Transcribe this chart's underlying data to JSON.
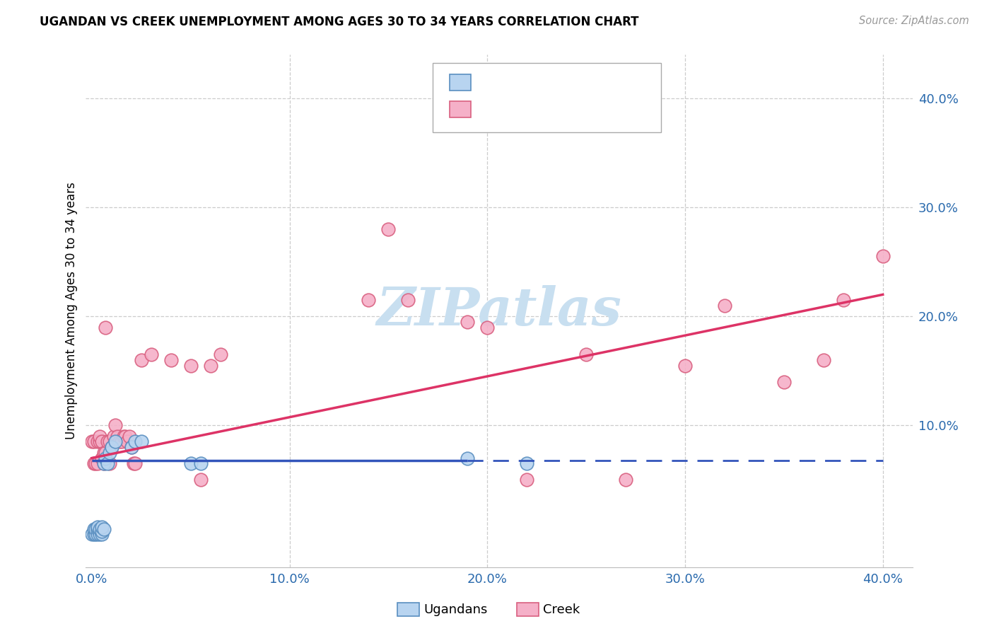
{
  "title": "UGANDAN VS CREEK UNEMPLOYMENT AMONG AGES 30 TO 34 YEARS CORRELATION CHART",
  "source": "Source: ZipAtlas.com",
  "ylabel": "Unemployment Among Ages 30 to 34 years",
  "xlim": [
    -0.003,
    0.415
  ],
  "ylim": [
    -0.03,
    0.44
  ],
  "xticks": [
    0.0,
    0.1,
    0.2,
    0.3,
    0.4
  ],
  "xtick_labels": [
    "0.0%",
    "10.0%",
    "20.0%",
    "30.0%",
    "40.0%"
  ],
  "yticks": [
    0.0,
    0.1,
    0.2,
    0.3,
    0.4
  ],
  "ytick_labels": [
    "",
    "10.0%",
    "20.0%",
    "30.0%",
    "40.0%"
  ],
  "ugandan_color": "#b8d4f0",
  "creek_color": "#f5b0c8",
  "ugandan_edge": "#5a8fc0",
  "creek_edge": "#d96080",
  "trend_ugandan_color": "#3355bb",
  "trend_creek_color": "#dd3366",
  "ugandan_x": [
    0.0,
    0.001,
    0.001,
    0.002,
    0.002,
    0.003,
    0.003,
    0.003,
    0.004,
    0.004,
    0.005,
    0.005,
    0.005,
    0.006,
    0.006,
    0.007,
    0.008,
    0.009,
    0.01,
    0.012,
    0.02,
    0.022,
    0.025,
    0.05,
    0.055,
    0.19,
    0.22
  ],
  "ugandan_y": [
    0.0,
    0.0,
    0.005,
    0.0,
    0.005,
    0.0,
    0.005,
    0.007,
    0.0,
    0.005,
    0.0,
    0.003,
    0.007,
    0.005,
    0.065,
    0.07,
    0.065,
    0.075,
    0.08,
    0.085,
    0.08,
    0.085,
    0.085,
    0.065,
    0.065,
    0.07,
    0.065
  ],
  "creek_x": [
    0.0,
    0.001,
    0.001,
    0.002,
    0.003,
    0.003,
    0.004,
    0.004,
    0.005,
    0.005,
    0.006,
    0.006,
    0.007,
    0.007,
    0.008,
    0.009,
    0.009,
    0.01,
    0.011,
    0.012,
    0.013,
    0.014,
    0.015,
    0.016,
    0.017,
    0.018,
    0.019,
    0.02,
    0.021,
    0.022,
    0.025,
    0.03,
    0.04,
    0.05,
    0.055,
    0.06,
    0.065,
    0.14,
    0.16,
    0.19,
    0.2,
    0.22,
    0.3,
    0.32,
    0.35,
    0.37,
    0.38,
    0.4,
    0.15,
    0.25,
    0.27
  ],
  "creek_y": [
    0.085,
    0.065,
    0.085,
    0.065,
    0.065,
    0.085,
    0.085,
    0.09,
    0.07,
    0.085,
    0.065,
    0.075,
    0.075,
    0.19,
    0.085,
    0.065,
    0.085,
    0.08,
    0.09,
    0.1,
    0.09,
    0.085,
    0.085,
    0.09,
    0.09,
    0.085,
    0.09,
    0.08,
    0.065,
    0.065,
    0.16,
    0.165,
    0.16,
    0.155,
    0.05,
    0.155,
    0.165,
    0.215,
    0.215,
    0.195,
    0.19,
    0.05,
    0.155,
    0.21,
    0.14,
    0.16,
    0.215,
    0.255,
    0.28,
    0.165,
    0.05
  ],
  "ugandan_trend_y0": 0.068,
  "ugandan_trend_y1": 0.068,
  "creek_trend_y0": 0.07,
  "creek_trend_y1": 0.22,
  "trend_solid_end": 0.19
}
